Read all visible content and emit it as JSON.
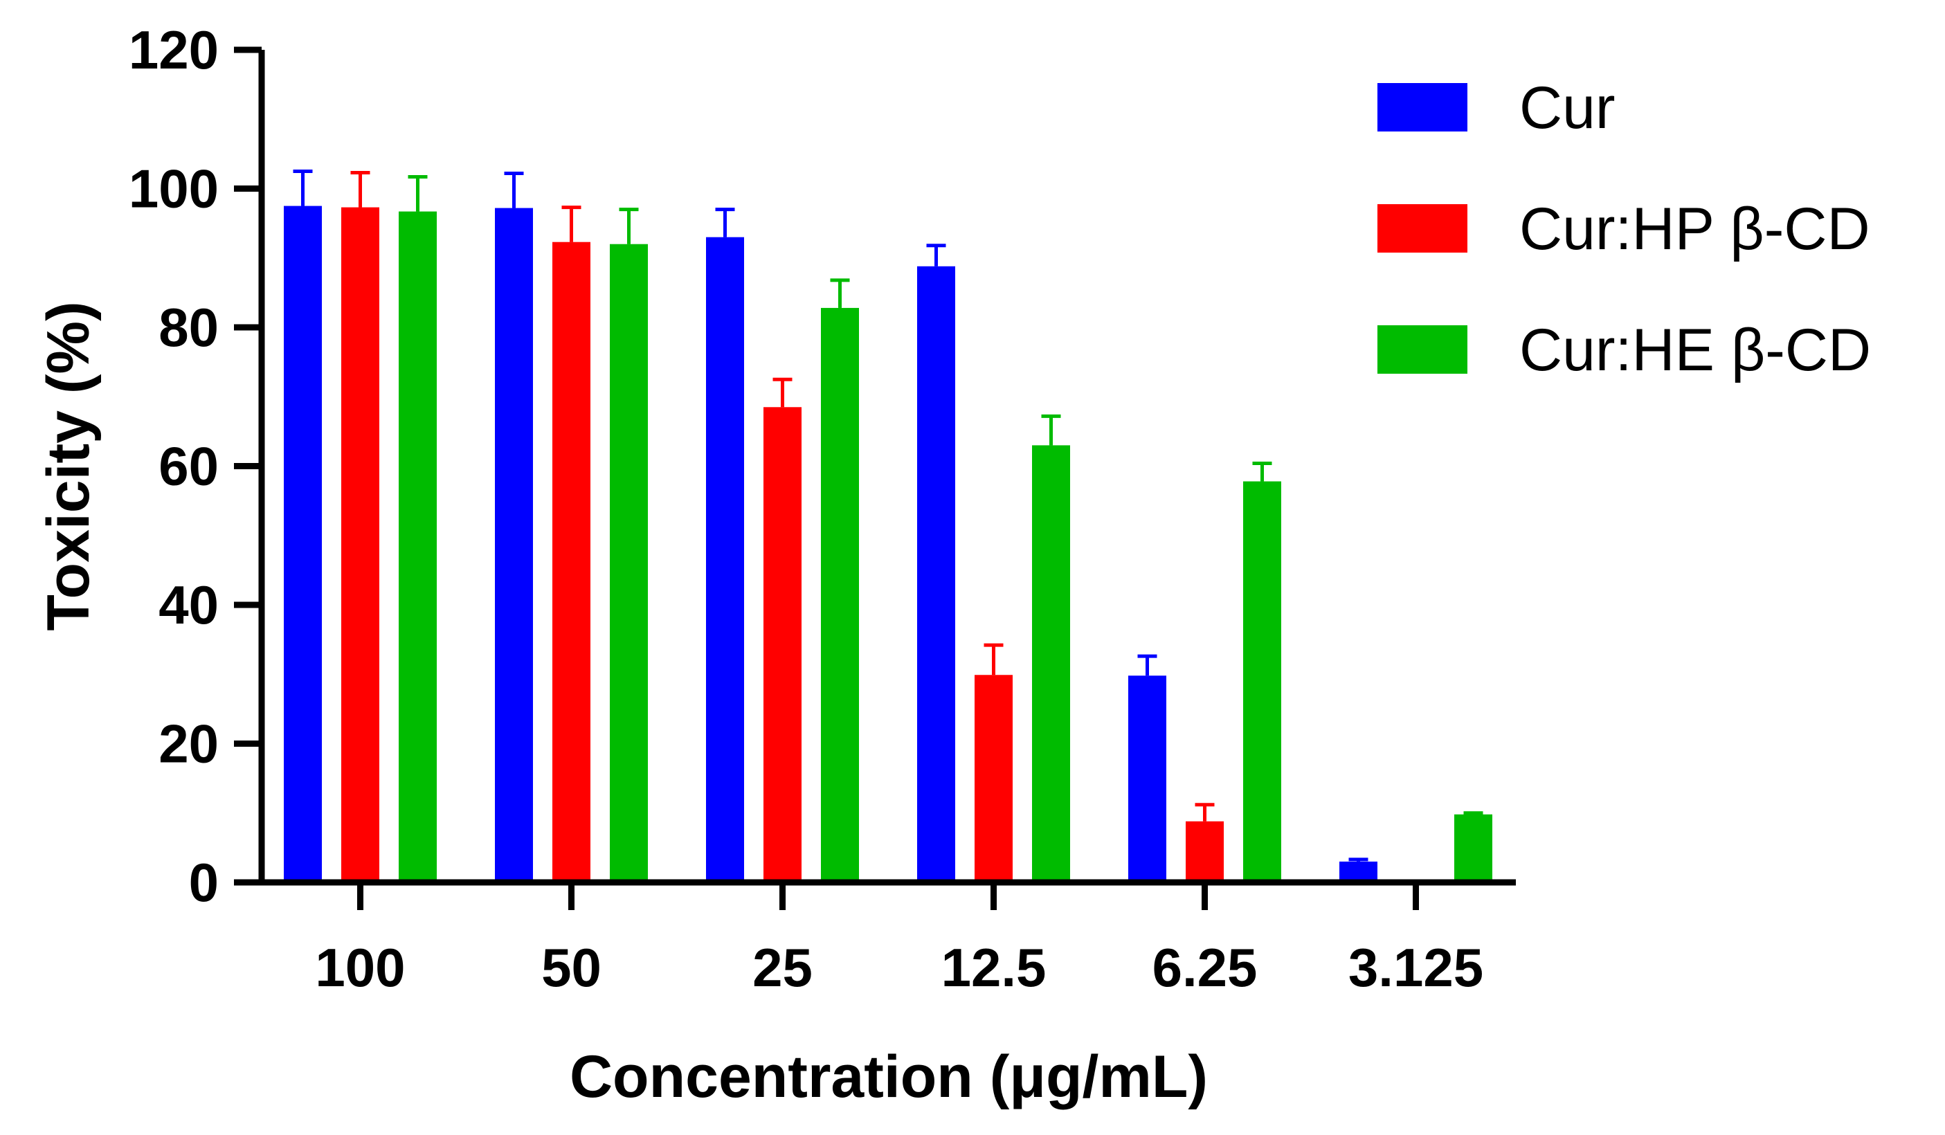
{
  "chart_data": {
    "type": "bar",
    "title": "",
    "xlabel": "Concentration (μg/mL)",
    "ylabel": "Toxicity (%)",
    "ylim": [
      0,
      120
    ],
    "yticks": [
      "0",
      "20",
      "40",
      "60",
      "80",
      "100",
      "120"
    ],
    "categories": [
      "100",
      "50",
      "25",
      "12.5",
      "6.25",
      "3.125"
    ],
    "series": [
      {
        "name": "Cur",
        "color": "#0000ff",
        "values": [
          97.5,
          97.2,
          93.0,
          88.8,
          29.8,
          3.0
        ],
        "errors": [
          5.0,
          5.0,
          4.0,
          3.0,
          2.8,
          0.3
        ]
      },
      {
        "name": "Cur:HP β-CD",
        "color": "#ff0000",
        "values": [
          97.3,
          92.3,
          68.5,
          29.9,
          8.8,
          0.0
        ],
        "errors": [
          5.0,
          5.0,
          4.0,
          4.3,
          2.4,
          0.0
        ]
      },
      {
        "name": "Cur:HE β-CD",
        "color": "#00bb00",
        "values": [
          96.7,
          92.0,
          82.8,
          63.0,
          57.8,
          9.8
        ],
        "errors": [
          5.0,
          5.0,
          4.0,
          4.2,
          2.6,
          0.2
        ]
      }
    ],
    "legend_position": "top-right"
  }
}
